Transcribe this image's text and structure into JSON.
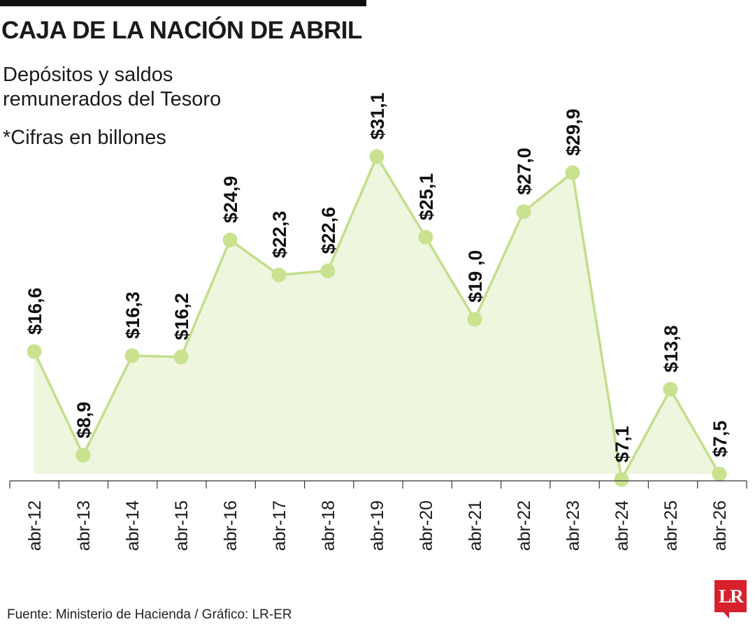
{
  "header": {
    "title": "CAJA DE LA NACIÓN DE ABRIL",
    "subtitle_line1": "Depósitos y saldos",
    "subtitle_line2": "remunerados del Tesoro",
    "note": "*Cifras en billones"
  },
  "footer": {
    "source": "Fuente: Ministerio de Hacienda / Gráfico: LR-ER",
    "logo_text": "LR"
  },
  "colors": {
    "line": "#c3de8c",
    "marker": "#c9e290",
    "area": "#eef6de",
    "axis": "#333333",
    "logo": "#d6202c"
  },
  "chart_data": {
    "type": "line",
    "title": "CAJA DE LA NACIÓN DE ABRIL",
    "categories": [
      "abr-12",
      "abr-13",
      "abr-14",
      "abr-15",
      "abr-16",
      "abr-17",
      "abr-18",
      "abr-19",
      "abr-20",
      "abr-21",
      "abr-22",
      "abr-23",
      "abr-24",
      "abr-25",
      "abr-26"
    ],
    "values": [
      16.6,
      8.9,
      16.3,
      16.2,
      24.9,
      22.3,
      22.6,
      31.1,
      25.1,
      19.0,
      27.0,
      29.9,
      7.1,
      13.8,
      7.5
    ],
    "data_labels": [
      "$16,6",
      "$8,9",
      "$16,3",
      "$16,2",
      "$24,9",
      "$22,3",
      "$22,6",
      "$31,1",
      "$25,1",
      "$19 ,0",
      "$27,0",
      "$29,9",
      "$7,1",
      "$13,8",
      "$7,5"
    ],
    "area_fill": true,
    "grid": false,
    "legend": "none"
  }
}
